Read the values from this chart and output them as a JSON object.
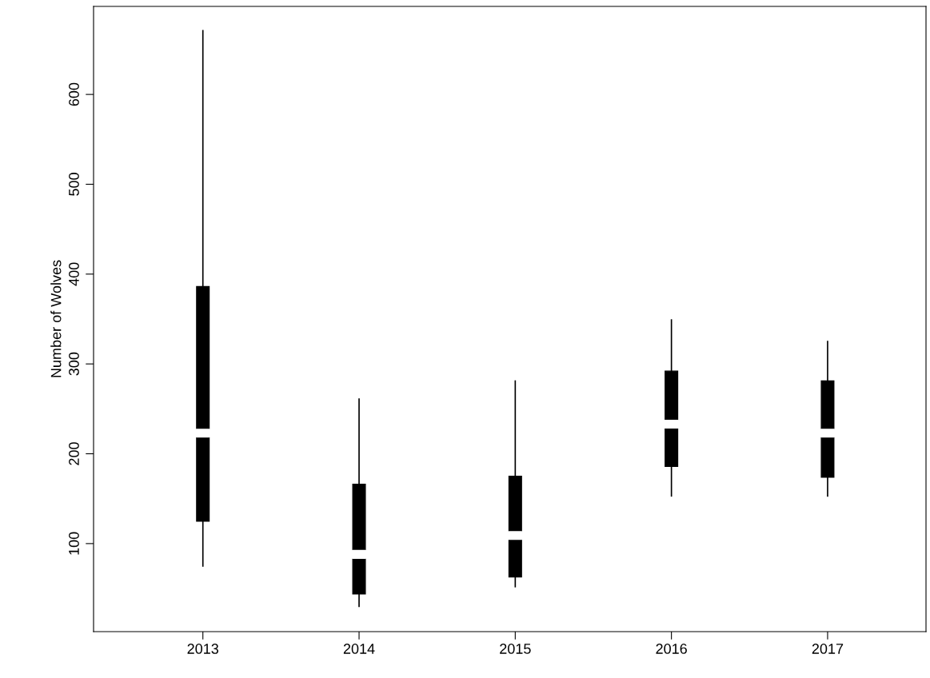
{
  "chart_data": {
    "type": "box",
    "ylabel": "Number of Wolves",
    "categories": [
      "2013",
      "2014",
      "2015",
      "2016",
      "2017"
    ],
    "boxes": [
      {
        "low": 75,
        "q1": 125,
        "median": 223,
        "q3": 386,
        "high": 671
      },
      {
        "low": 30,
        "q1": 44,
        "median": 88,
        "q3": 166,
        "high": 261
      },
      {
        "low": 52,
        "q1": 63,
        "median": 109,
        "q3": 175,
        "high": 281
      },
      {
        "low": 153,
        "q1": 186,
        "median": 233,
        "q3": 292,
        "high": 349
      },
      {
        "low": 153,
        "q1": 174,
        "median": 223,
        "q3": 281,
        "high": 325
      }
    ],
    "color": "#000000",
    "ylim": [
      2,
      698
    ],
    "yticks": [
      100,
      200,
      300,
      400,
      500,
      600
    ],
    "grid": false
  }
}
